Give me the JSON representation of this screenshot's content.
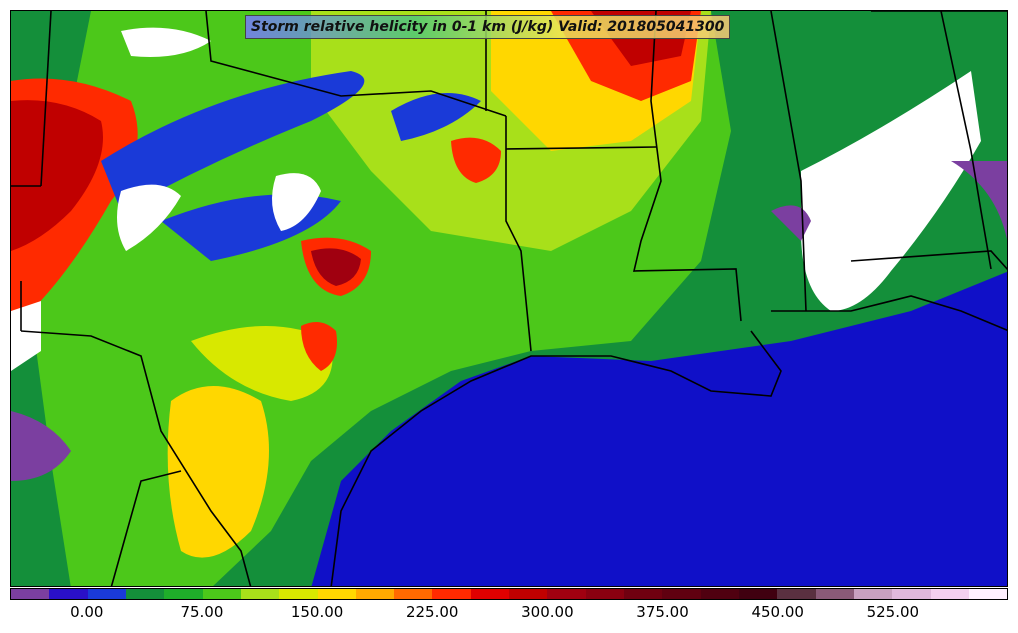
{
  "title": "Storm relative helicity in 0-1 km (J/kg) Valid: 201805041300",
  "colorbar": {
    "colors": [
      "#7b3fa0",
      "#2a10c8",
      "#1a3ad8",
      "#148f3a",
      "#1fae2a",
      "#4cc81a",
      "#a8e01a",
      "#d8e800",
      "#ffd700",
      "#ffaa00",
      "#ff6a00",
      "#ff2a00",
      "#e00000",
      "#c00000",
      "#a00010",
      "#8a0010",
      "#700010",
      "#600010",
      "#500010",
      "#400010",
      "#5a3040",
      "#8a5a78",
      "#c8a0c0",
      "#e0b8dc",
      "#f4d0f0",
      "#fff0ff"
    ],
    "tick_labels": [
      "0.00",
      "75.00",
      "150.00",
      "225.00",
      "300.00",
      "375.00",
      "450.00",
      "525.00"
    ]
  }
}
